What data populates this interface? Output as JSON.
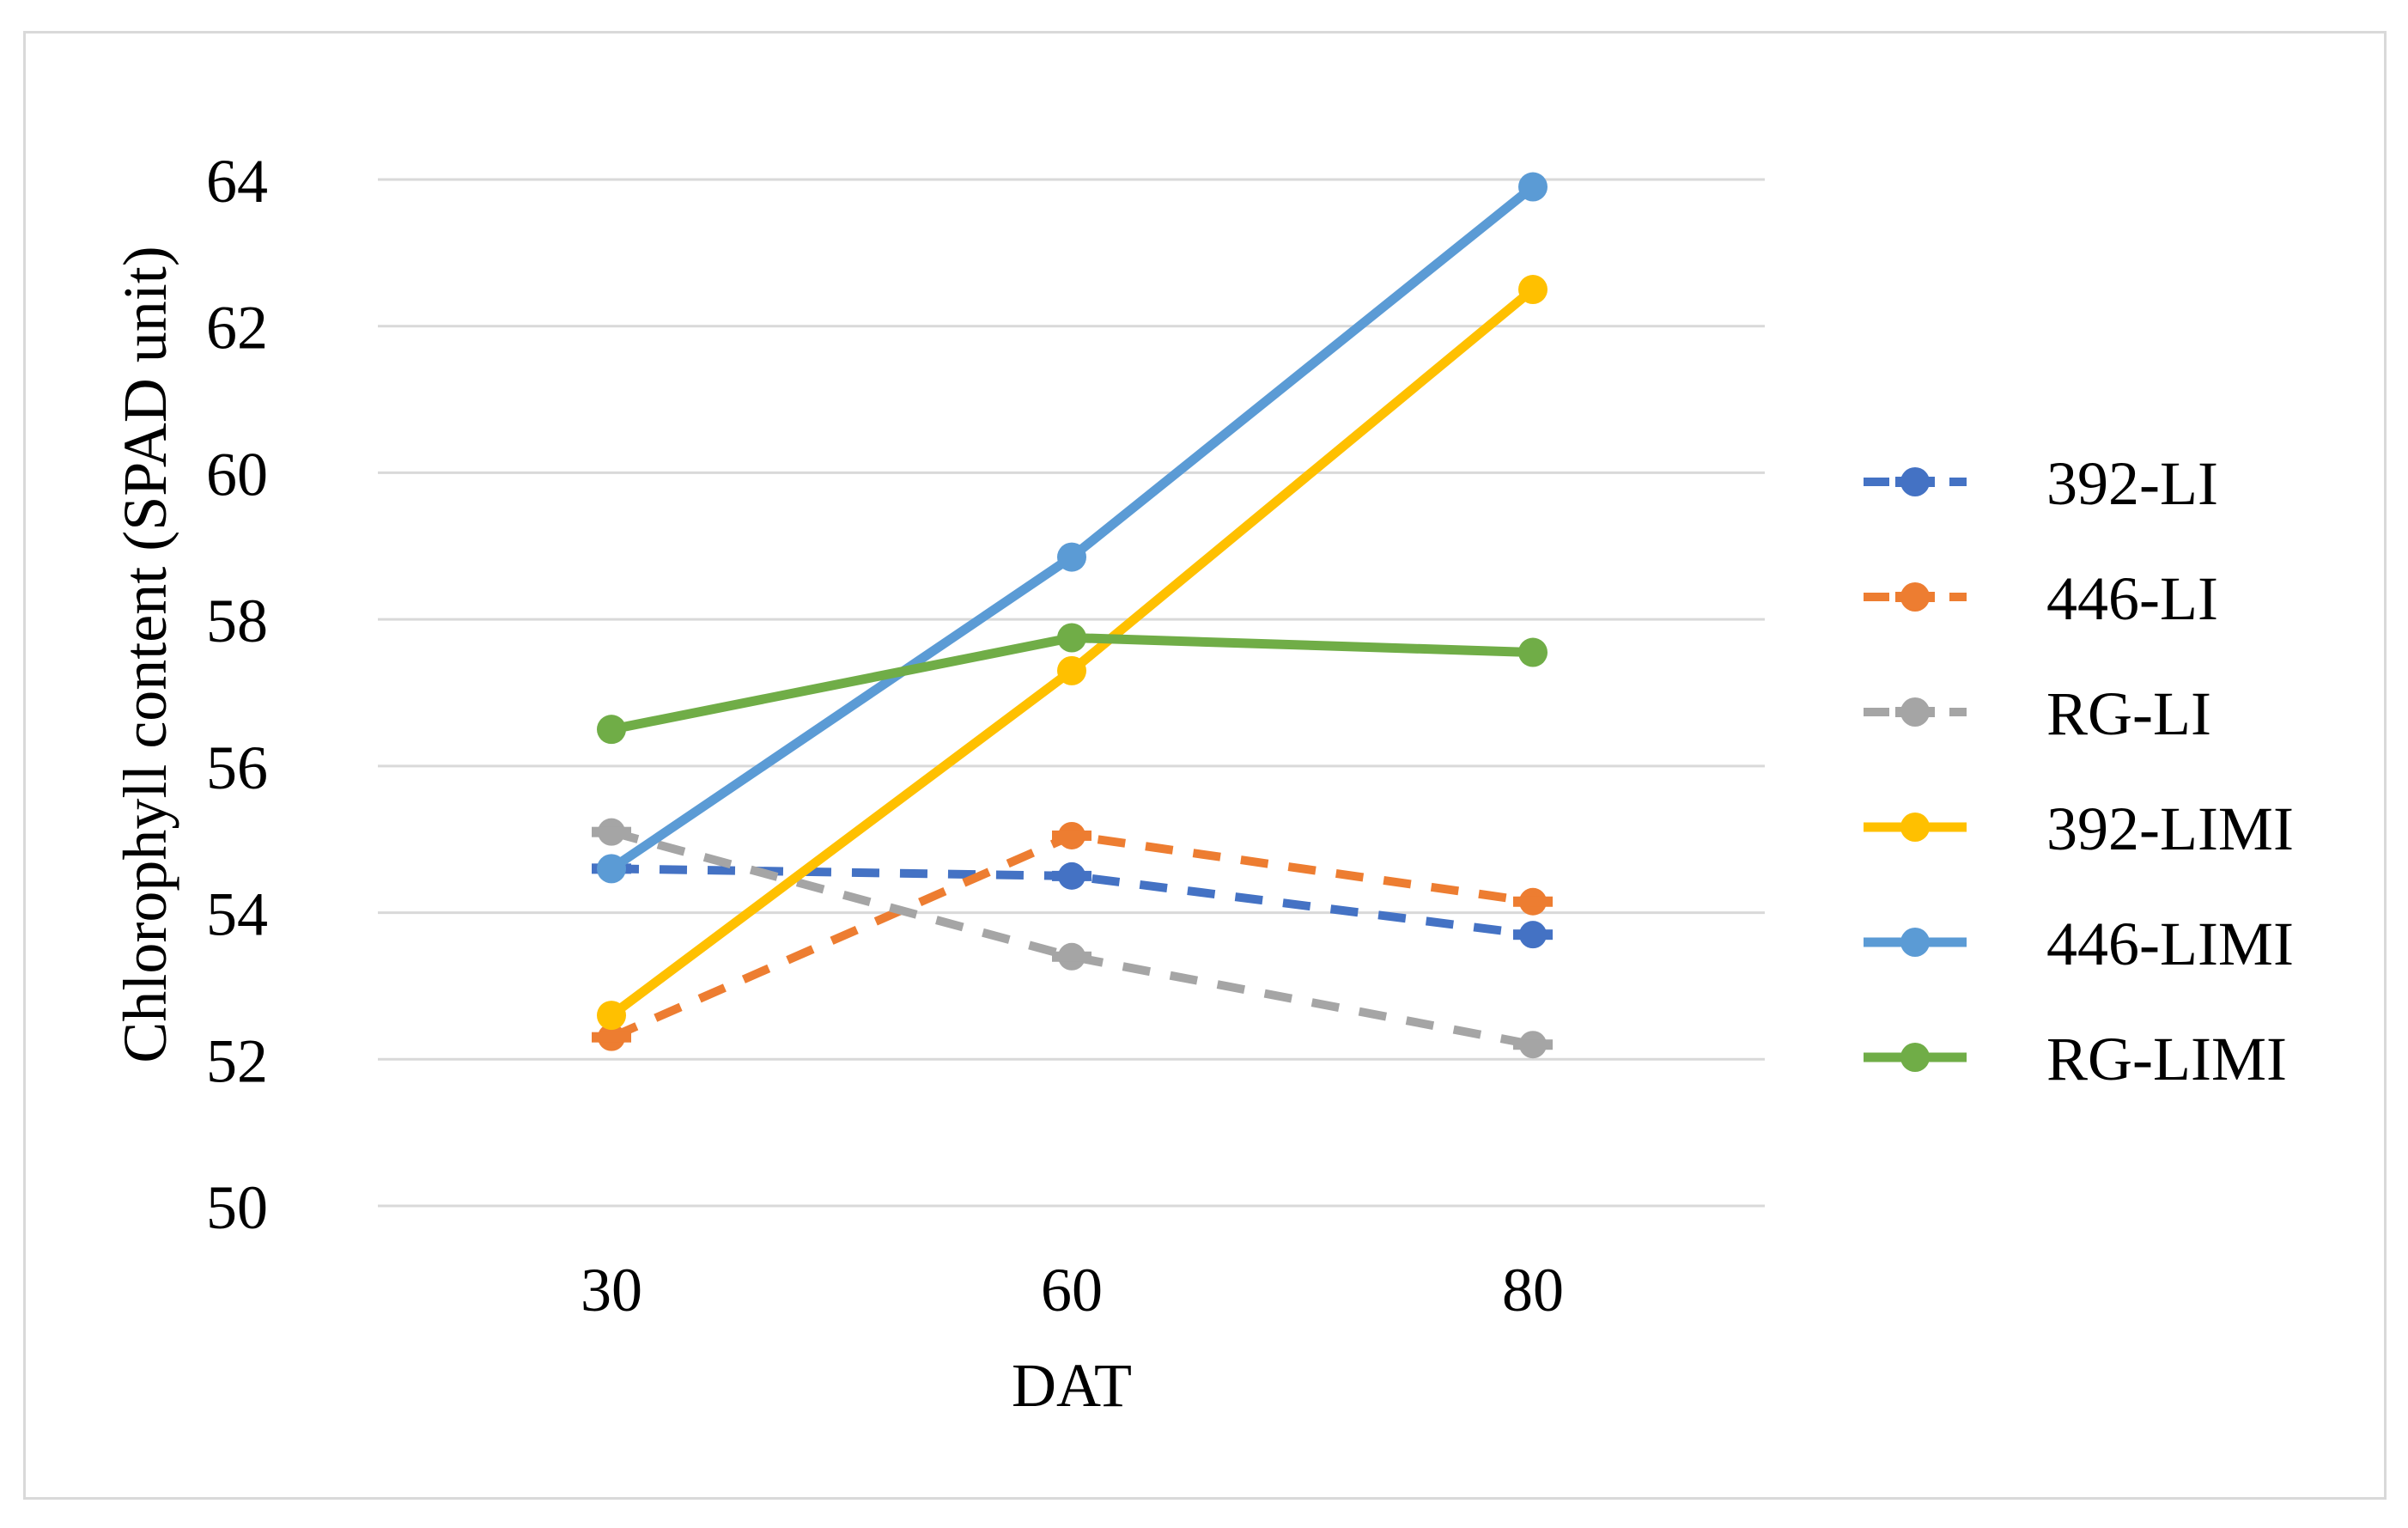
{
  "chart_data": {
    "type": "line",
    "title": "",
    "xlabel": "DAT",
    "ylabel": "Chlorophyll content (SPAD unit)",
    "categories": [
      "30",
      "60",
      "80"
    ],
    "ylim": [
      50,
      64
    ],
    "yticks": [
      50,
      52,
      54,
      56,
      58,
      60,
      62,
      64
    ],
    "grid": true,
    "legend_position": "right",
    "series": [
      {
        "name": "392-LI",
        "values": [
          54.6,
          54.5,
          53.7
        ],
        "color": "#4472C4",
        "dashed": true
      },
      {
        "name": "446-LI",
        "values": [
          52.3,
          55.05,
          54.15
        ],
        "color": "#ED7D31",
        "dashed": true
      },
      {
        "name": "RG-LI",
        "values": [
          55.1,
          53.4,
          52.2
        ],
        "color": "#A5A5A5",
        "dashed": true
      },
      {
        "name": "392-LIMI",
        "values": [
          52.6,
          57.3,
          62.5
        ],
        "color": "#FFC000",
        "dashed": false
      },
      {
        "name": "446-LIMI",
        "values": [
          54.6,
          58.85,
          63.9
        ],
        "color": "#5B9BD5",
        "dashed": false
      },
      {
        "name": "RG-LIMI",
        "values": [
          56.5,
          57.75,
          57.55
        ],
        "color": "#70AD47",
        "dashed": false
      }
    ]
  }
}
